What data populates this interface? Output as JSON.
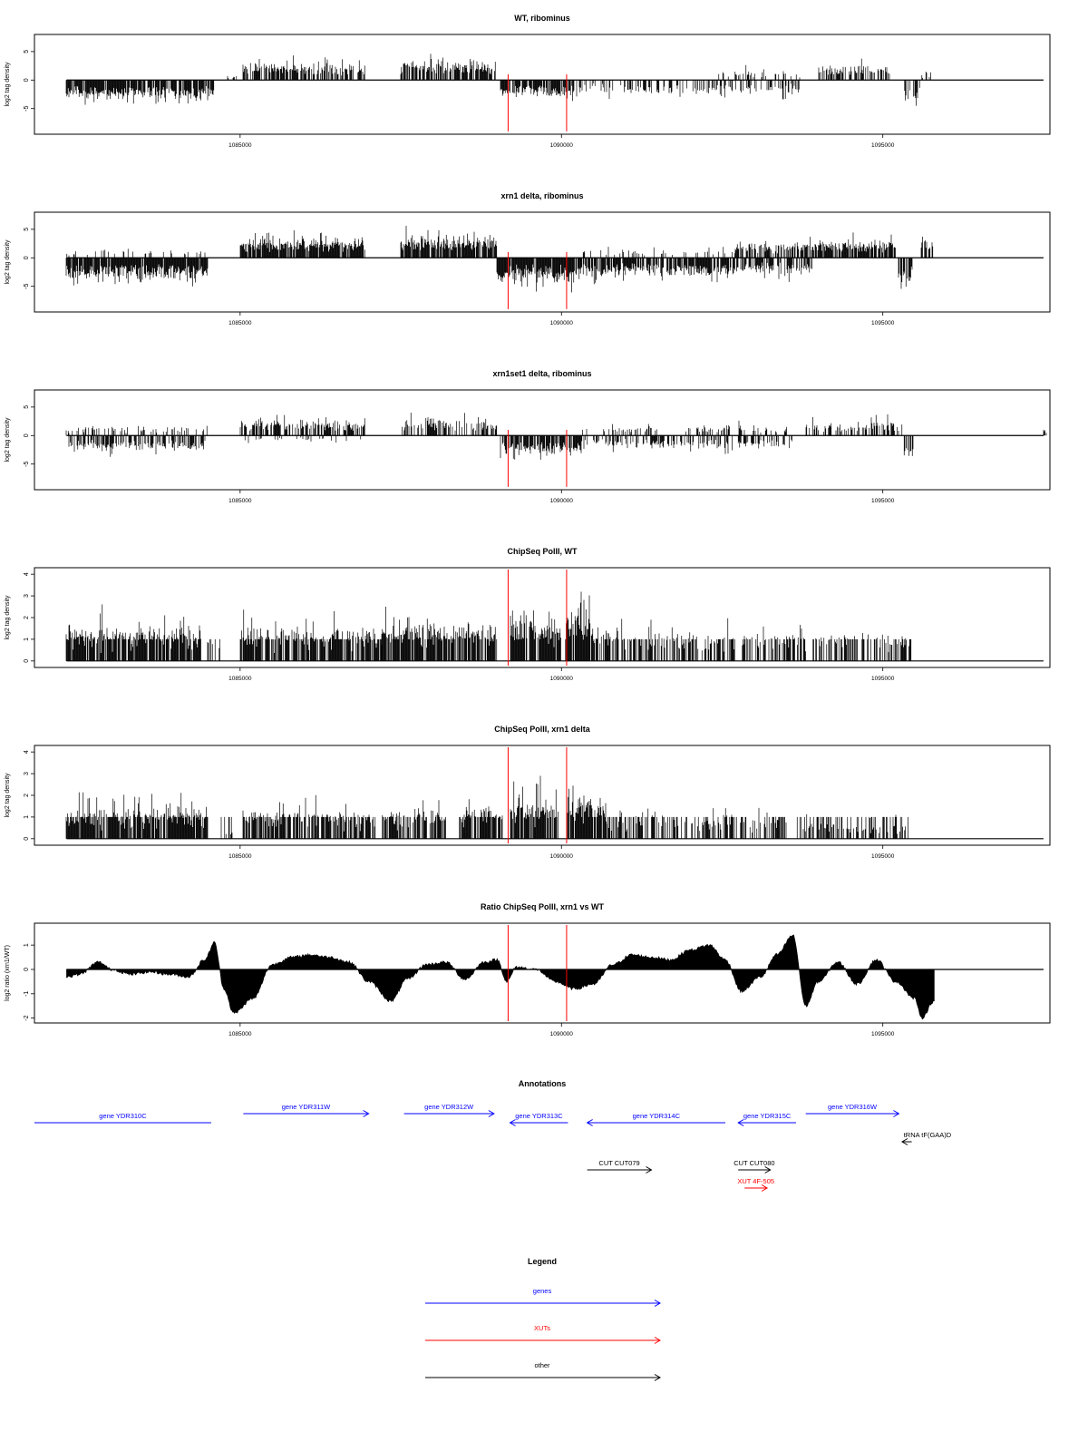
{
  "chart_data": [
    {
      "type": "bar",
      "title": "WT, ribominus",
      "ylabel": "log2 tag density",
      "xlim": [
        1081800,
        1097600
      ],
      "ylim": [
        -9.5,
        8
      ],
      "yticks": [
        -5,
        0,
        5
      ],
      "xticks": [
        1085000,
        1090000,
        1095000
      ],
      "xtick_labels": [
        "1085000",
        "1090000",
        "1095000"
      ],
      "marker_lines_x": [
        1089170,
        1090080
      ],
      "marker_color": "#ff0000",
      "segments": [
        {
          "x": [
            1082300,
            1084600
          ],
          "sign": -1,
          "base": 2.5,
          "spread": 2.5,
          "density": 0.85
        },
        {
          "x": [
            1084800,
            1084950
          ],
          "sign": 1,
          "base": 0.8,
          "spread": 0.6,
          "density": 0.4
        },
        {
          "x": [
            1085050,
            1086950
          ],
          "sign": 1,
          "base": 2.2,
          "spread": 2.5,
          "density": 0.7
        },
        {
          "x": [
            1087500,
            1089000
          ],
          "sign": 1,
          "base": 2.5,
          "spread": 2.8,
          "density": 0.75
        },
        {
          "x": [
            1089050,
            1090200
          ],
          "sign": -1,
          "base": 2.2,
          "spread": 2.0,
          "density": 0.8
        },
        {
          "x": [
            1090200,
            1092400
          ],
          "sign": -1,
          "base": 1.5,
          "spread": 2.5,
          "density": 0.35
        },
        {
          "x": [
            1092400,
            1093700
          ],
          "sign": 1,
          "base": 0.8,
          "spread": 2.0,
          "density": 0.25
        },
        {
          "x": [
            1092400,
            1093700
          ],
          "sign": -1,
          "base": 1.5,
          "spread": 2.5,
          "density": 0.35
        },
        {
          "x": [
            1094000,
            1095100
          ],
          "sign": 1,
          "base": 1.8,
          "spread": 2.2,
          "density": 0.55
        },
        {
          "x": [
            1095250,
            1095700
          ],
          "sign": -1,
          "base": 2.0,
          "spread": 5.0,
          "density": 0.5
        },
        {
          "x": [
            1095600,
            1095800
          ],
          "sign": 1,
          "base": 0.8,
          "spread": 1.5,
          "density": 0.3
        }
      ]
    },
    {
      "type": "bar",
      "title": "xrn1 delta, ribominus",
      "ylabel": "log2 tag density",
      "xlim": [
        1081800,
        1097600
      ],
      "ylim": [
        -9.5,
        8
      ],
      "yticks": [
        -5,
        0,
        5
      ],
      "xticks": [
        1085000,
        1090000,
        1095000
      ],
      "xtick_labels": [
        "1085000",
        "1090000",
        "1095000"
      ],
      "marker_lines_x": [
        1089170,
        1090080
      ],
      "marker_color": "#ff0000",
      "segments": [
        {
          "x": [
            1082300,
            1084500
          ],
          "sign": -1,
          "base": 3.0,
          "spread": 2.5,
          "density": 0.95
        },
        {
          "x": [
            1082300,
            1084500
          ],
          "sign": 1,
          "base": 0.8,
          "spread": 1.5,
          "density": 0.12
        },
        {
          "x": [
            1085000,
            1086950
          ],
          "sign": 1,
          "base": 2.5,
          "spread": 2.5,
          "density": 0.9
        },
        {
          "x": [
            1087500,
            1089000
          ],
          "sign": 1,
          "base": 3.0,
          "spread": 2.8,
          "density": 0.9
        },
        {
          "x": [
            1089000,
            1090300
          ],
          "sign": -1,
          "base": 3.2,
          "spread": 3.0,
          "density": 0.95
        },
        {
          "x": [
            1090300,
            1092700
          ],
          "sign": -1,
          "base": 2.5,
          "spread": 2.5,
          "density": 0.8
        },
        {
          "x": [
            1090300,
            1092700
          ],
          "sign": 1,
          "base": 0.8,
          "spread": 1.5,
          "density": 0.2
        },
        {
          "x": [
            1092700,
            1093900
          ],
          "sign": 1,
          "base": 2.0,
          "spread": 2.0,
          "density": 0.7
        },
        {
          "x": [
            1092700,
            1093900
          ],
          "sign": -1,
          "base": 2.0,
          "spread": 2.5,
          "density": 0.6
        },
        {
          "x": [
            1093900,
            1095200
          ],
          "sign": 1,
          "base": 2.5,
          "spread": 2.0,
          "density": 0.85
        },
        {
          "x": [
            1095250,
            1095450
          ],
          "sign": -1,
          "base": 3.0,
          "spread": 4.0,
          "density": 0.6
        },
        {
          "x": [
            1095600,
            1095800
          ],
          "sign": 1,
          "base": 3.0,
          "spread": 2.0,
          "density": 0.6
        }
      ]
    },
    {
      "type": "bar",
      "title": "xrn1set1 delta, ribominus",
      "ylabel": "log2 tag density",
      "xlim": [
        1081800,
        1097600
      ],
      "ylim": [
        -9.5,
        8
      ],
      "yticks": [
        -5,
        0,
        5
      ],
      "xticks": [
        1085000,
        1090000,
        1095000
      ],
      "xtick_labels": [
        "1085000",
        "1090000",
        "1095000"
      ],
      "marker_lines_x": [
        1089170,
        1090080
      ],
      "marker_color": "#ff0000",
      "segments": [
        {
          "x": [
            1082300,
            1084500
          ],
          "sign": -1,
          "base": 1.8,
          "spread": 2.5,
          "density": 0.55
        },
        {
          "x": [
            1082300,
            1084500
          ],
          "sign": 1,
          "base": 1.0,
          "spread": 2.0,
          "density": 0.25
        },
        {
          "x": [
            1085000,
            1086950
          ],
          "sign": 1,
          "base": 1.8,
          "spread": 2.5,
          "density": 0.5
        },
        {
          "x": [
            1085000,
            1086950
          ],
          "sign": -1,
          "base": 0.8,
          "spread": 1.0,
          "density": 0.15
        },
        {
          "x": [
            1087500,
            1089000
          ],
          "sign": 1,
          "base": 2.0,
          "spread": 2.5,
          "density": 0.55
        },
        {
          "x": [
            1089050,
            1090300
          ],
          "sign": -1,
          "base": 2.5,
          "spread": 2.5,
          "density": 0.8
        },
        {
          "x": [
            1090300,
            1093600
          ],
          "sign": -1,
          "base": 1.5,
          "spread": 2.5,
          "density": 0.45
        },
        {
          "x": [
            1090300,
            1093600
          ],
          "sign": 1,
          "base": 1.0,
          "spread": 2.0,
          "density": 0.25
        },
        {
          "x": [
            1093800,
            1095300
          ],
          "sign": 1,
          "base": 1.5,
          "spread": 2.5,
          "density": 0.45
        },
        {
          "x": [
            1095300,
            1095500
          ],
          "sign": -1,
          "base": 2.5,
          "spread": 4.5,
          "density": 0.5
        },
        {
          "x": [
            1097500,
            1097550
          ],
          "sign": 1,
          "base": 1.0,
          "spread": 0.2,
          "density": 0.8
        }
      ]
    },
    {
      "type": "bar",
      "title": "ChipSeq PolII, WT",
      "ylabel": "log2 tag density",
      "xlim": [
        1081800,
        1097600
      ],
      "ylim": [
        -0.3,
        4.3
      ],
      "yticks": [
        0,
        1,
        2,
        3,
        4
      ],
      "xticks": [
        1085000,
        1090000,
        1095000
      ],
      "xtick_labels": [
        "1085000",
        "1090000",
        "1095000"
      ],
      "marker_lines_x": [
        1089170,
        1090080
      ],
      "marker_color": "#ff0000",
      "baseline_extends_to": 1097500,
      "segments": [
        {
          "x": [
            1082300,
            1084400
          ],
          "sign": 1,
          "base": 1.0,
          "spread": 1.8,
          "density": 0.9
        },
        {
          "x": [
            1084500,
            1084700
          ],
          "sign": 1,
          "base": 1.0,
          "spread": 0.0,
          "density": 0.3
        },
        {
          "x": [
            1085000,
            1087200
          ],
          "sign": 1,
          "base": 1.0,
          "spread": 1.5,
          "density": 0.8
        },
        {
          "x": [
            1087200,
            1088300
          ],
          "sign": 1,
          "base": 1.2,
          "spread": 1.5,
          "density": 0.8
        },
        {
          "x": [
            1088300,
            1089000
          ],
          "sign": 1,
          "base": 1.2,
          "spread": 1.8,
          "density": 0.8
        },
        {
          "x": [
            1089200,
            1090000
          ],
          "sign": 1,
          "base": 1.5,
          "spread": 1.5,
          "density": 0.9
        },
        {
          "x": [
            1090050,
            1090500
          ],
          "sign": 1,
          "base": 2.0,
          "spread": 2.0,
          "density": 0.95
        },
        {
          "x": [
            1090500,
            1092700
          ],
          "sign": 1,
          "base": 1.0,
          "spread": 1.0,
          "density": 0.55
        },
        {
          "x": [
            1092800,
            1095500
          ],
          "sign": 1,
          "base": 1.0,
          "spread": 0.8,
          "density": 0.5
        }
      ]
    },
    {
      "type": "bar",
      "title": "ChipSeq PolII, xrn1 delta",
      "ylabel": "log2 tag density",
      "xlim": [
        1081800,
        1097600
      ],
      "ylim": [
        -0.3,
        4.3
      ],
      "yticks": [
        0,
        1,
        2,
        3,
        4
      ],
      "xticks": [
        1085000,
        1090000,
        1095000
      ],
      "xtick_labels": [
        "1085000",
        "1090000",
        "1095000"
      ],
      "marker_lines_x": [
        1089170,
        1090080
      ],
      "marker_color": "#ff0000",
      "baseline_extends_to": 1097500,
      "segments": [
        {
          "x": [
            1082300,
            1084500
          ],
          "sign": 1,
          "base": 0.8,
          "spread": 1.8,
          "density": 0.9
        },
        {
          "x": [
            1084700,
            1084900
          ],
          "sign": 1,
          "base": 0.3,
          "spread": 0.1,
          "density": 0.3
        },
        {
          "x": [
            1085050,
            1086200
          ],
          "sign": 1,
          "base": 0.8,
          "spread": 1.4,
          "density": 0.75
        },
        {
          "x": [
            1086200,
            1087100
          ],
          "sign": 1,
          "base": 0.8,
          "spread": 1.2,
          "density": 0.7
        },
        {
          "x": [
            1087200,
            1088200
          ],
          "sign": 1,
          "base": 1.0,
          "spread": 1.2,
          "density": 0.75
        },
        {
          "x": [
            1088400,
            1089100
          ],
          "sign": 1,
          "base": 1.0,
          "spread": 1.5,
          "density": 0.8
        },
        {
          "x": [
            1089200,
            1089950
          ],
          "sign": 1,
          "base": 1.2,
          "spread": 1.8,
          "density": 0.9
        },
        {
          "x": [
            1090100,
            1090700
          ],
          "sign": 1,
          "base": 1.5,
          "spread": 1.5,
          "density": 0.9
        },
        {
          "x": [
            1090700,
            1093500
          ],
          "sign": 1,
          "base": 0.6,
          "spread": 1.0,
          "density": 0.5
        },
        {
          "x": [
            1093600,
            1095400
          ],
          "sign": 1,
          "base": 0.5,
          "spread": 0.8,
          "density": 0.5
        }
      ]
    },
    {
      "type": "area",
      "title": "Ratio ChipSeq PolII, xrn1 vs WT",
      "ylabel": "log2 ratio (xrn1/WT)",
      "xlim": [
        1081800,
        1097600
      ],
      "ylim": [
        -2.2,
        1.9
      ],
      "yticks": [
        -2,
        -1,
        0,
        1
      ],
      "xticks": [
        1085000,
        1090000,
        1095000
      ],
      "xtick_labels": [
        "1085000",
        "1090000",
        "1095000"
      ],
      "marker_lines_x": [
        1089170,
        1090080
      ],
      "marker_color": "#ff0000",
      "baseline_extends_to": 1097500,
      "x": [
        1082300,
        1082500,
        1082800,
        1083000,
        1083300,
        1083600,
        1083900,
        1084200,
        1084450,
        1084600,
        1084750,
        1084900,
        1085200,
        1085500,
        1085800,
        1086100,
        1086400,
        1086700,
        1087000,
        1087350,
        1087600,
        1087900,
        1088200,
        1088500,
        1088800,
        1089000,
        1089150,
        1089300,
        1089600,
        1089900,
        1090200,
        1090500,
        1090800,
        1091100,
        1091400,
        1091700,
        1092000,
        1092300,
        1092550,
        1092800,
        1093100,
        1093350,
        1093600,
        1093800,
        1094000,
        1094300,
        1094600,
        1094900,
        1095200,
        1095500,
        1095600,
        1095800
      ],
      "values": [
        -0.3,
        -0.2,
        0.3,
        0.0,
        -0.2,
        -0.1,
        -0.2,
        -0.3,
        0.4,
        1.1,
        -0.8,
        -1.8,
        -1.2,
        0.2,
        0.5,
        0.6,
        0.5,
        0.3,
        -0.5,
        -1.3,
        -0.4,
        0.2,
        0.3,
        -0.4,
        0.3,
        0.4,
        -0.5,
        0.1,
        0.0,
        -0.5,
        -0.8,
        -0.6,
        0.2,
        0.6,
        0.5,
        0.4,
        0.8,
        1.0,
        0.4,
        -0.9,
        -0.3,
        0.6,
        1.4,
        -1.5,
        -0.5,
        0.3,
        -0.6,
        0.4,
        -0.5,
        -1.2,
        -2.0,
        -1.3
      ]
    }
  ],
  "annotations": {
    "title": "Annotations",
    "items": [
      {
        "label": "gene YDR310C",
        "start": 1081800,
        "end": 1084550,
        "strand": "-",
        "color": "#0000ff",
        "row": 1
      },
      {
        "label": "gene YDR311W",
        "start": 1085050,
        "end": 1087000,
        "strand": "+",
        "color": "#0000ff",
        "row": 0
      },
      {
        "label": "gene YDR312W",
        "start": 1087550,
        "end": 1088950,
        "strand": "+",
        "color": "#0000ff",
        "row": 0
      },
      {
        "label": "gene YDR313C",
        "start": 1089200,
        "end": 1090100,
        "strand": "-",
        "color": "#0000ff",
        "row": 1
      },
      {
        "label": "gene YDR314C",
        "start": 1090400,
        "end": 1092550,
        "strand": "-",
        "color": "#0000ff",
        "row": 1
      },
      {
        "label": "gene YDR315C",
        "start": 1092750,
        "end": 1093650,
        "strand": "-",
        "color": "#0000ff",
        "row": 1
      },
      {
        "label": "gene YDR316W",
        "start": 1093800,
        "end": 1095250,
        "strand": "+",
        "color": "#0000ff",
        "row": 0
      },
      {
        "label": "tRNA tF(GAA)D",
        "start": 1095300,
        "end": 1095450,
        "strand": "-",
        "color": "#000000",
        "row": 2
      },
      {
        "label": "CUT CUT079",
        "start": 1090400,
        "end": 1091400,
        "strand": "+",
        "color": "#000000",
        "row": 3
      },
      {
        "label": "CUT CUT080",
        "start": 1092750,
        "end": 1093250,
        "strand": "+",
        "color": "#000000",
        "row": 3
      },
      {
        "label": "XUT 4F-505",
        "start": 1092850,
        "end": 1093200,
        "strand": "+",
        "color": "#ff0000",
        "row": 4
      }
    ]
  },
  "legend": {
    "title": "Legend",
    "items": [
      {
        "label": "genes",
        "color": "#0000ff"
      },
      {
        "label": "XUTs",
        "color": "#ff0000"
      },
      {
        "label": "other",
        "color": "#000000"
      }
    ]
  }
}
